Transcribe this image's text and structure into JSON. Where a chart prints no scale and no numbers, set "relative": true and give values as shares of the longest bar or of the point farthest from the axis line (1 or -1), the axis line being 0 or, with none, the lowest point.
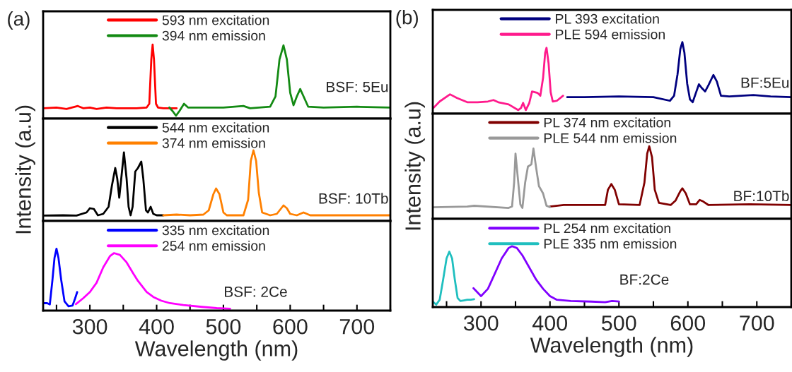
{
  "chart_data": [
    {
      "type": "line",
      "relative": true,
      "xlim": [
        230,
        750
      ],
      "tick_labels": false,
      "legend": "top",
      "marker": "none",
      "line_style": "solid",
      "grid": false,
      "annotations": [
        "(a)",
        "BSF: 5Eu"
      ],
      "series": [
        {
          "name": "593 nm excitation",
          "color": "#ff0000",
          "x": [
            230,
            250,
            265,
            282,
            290,
            300,
            310,
            325,
            340,
            370,
            385,
            389,
            392,
            394,
            396,
            399,
            402,
            410,
            430
          ],
          "values": [
            0.14,
            0.15,
            0.13,
            0.17,
            0.14,
            0.15,
            0.13,
            0.15,
            0.14,
            0.14,
            0.15,
            0.2,
            0.8,
            1.0,
            0.8,
            0.2,
            0.15,
            0.14,
            0.14
          ]
        },
        {
          "name": "394 nm emission",
          "color": "#138a13",
          "x": [
            419,
            424,
            429,
            434,
            441,
            447,
            460,
            500,
            530,
            540,
            570,
            578,
            584,
            590,
            595,
            600,
            605,
            610,
            615,
            620,
            627,
            650,
            700,
            750
          ],
          "values": [
            0.15,
            0.1,
            0.04,
            0.1,
            0.2,
            0.15,
            0.15,
            0.15,
            0.17,
            0.14,
            0.16,
            0.3,
            0.8,
            0.99,
            0.8,
            0.35,
            0.18,
            0.3,
            0.4,
            0.3,
            0.16,
            0.15,
            0.16,
            0.15
          ]
        }
      ]
    },
    {
      "type": "line",
      "relative": true,
      "xlim": [
        230,
        750
      ],
      "tick_labels": false,
      "legend": "top",
      "marker": "none",
      "line_style": "solid",
      "grid": false,
      "ylabel": "Intensity (a.u)",
      "annotations": [
        "BSF: 10Tb"
      ],
      "series": [
        {
          "name": "544 nm excitation",
          "color": "#000000",
          "x": [
            230,
            260,
            280,
            295,
            300,
            306,
            312,
            320,
            328,
            333,
            338,
            341,
            344,
            347,
            351,
            355,
            358,
            361,
            364,
            368,
            372,
            377,
            380,
            384,
            387,
            391,
            395,
            400,
            410
          ],
          "values": [
            0.077,
            0.08,
            0.077,
            0.12,
            0.18,
            0.17,
            0.08,
            0.1,
            0.2,
            0.5,
            0.75,
            0.6,
            0.33,
            0.6,
            0.97,
            0.6,
            0.2,
            0.08,
            0.2,
            0.7,
            0.75,
            0.84,
            0.6,
            0.15,
            0.12,
            0.2,
            0.1,
            0.08,
            0.08
          ]
        },
        {
          "name": "374 nm emission",
          "color": "#ff8000",
          "x": [
            410,
            430,
            450,
            470,
            478,
            485,
            489,
            494,
            500,
            505,
            530,
            537,
            541,
            545,
            549,
            553,
            558,
            570,
            580,
            585,
            590,
            595,
            600,
            610,
            620,
            630,
            680,
            750
          ],
          "values": [
            0.08,
            0.09,
            0.08,
            0.09,
            0.15,
            0.38,
            0.46,
            0.38,
            0.12,
            0.08,
            0.08,
            0.3,
            0.85,
            1.0,
            0.85,
            0.4,
            0.12,
            0.08,
            0.1,
            0.16,
            0.22,
            0.18,
            0.1,
            0.08,
            0.12,
            0.08,
            0.08,
            0.08
          ]
        }
      ]
    },
    {
      "type": "line",
      "relative": true,
      "xlim": [
        230,
        750
      ],
      "tick_labels": "x",
      "legend": "top",
      "marker": "none",
      "line_style": "solid",
      "grid": false,
      "xlabel": "Wavelength (nm)",
      "annotations": [
        "BSF: 2Ce"
      ],
      "xticks": [
        {
          "value": 250,
          "label": null
        },
        300,
        {
          "value": 350,
          "label": null
        },
        400,
        {
          "value": 450,
          "label": null
        },
        500,
        {
          "value": 550,
          "label": null
        },
        600,
        {
          "value": 650,
          "label": null
        },
        700,
        {
          "value": 750,
          "label": null
        }
      ],
      "series": [
        {
          "name": "335 nm excitation",
          "color": "#0000ff",
          "x": [
            230,
            236,
            240,
            244,
            247,
            250,
            253,
            257,
            262,
            268,
            274,
            278,
            281
          ],
          "values": [
            0.12,
            0.12,
            0.1,
            0.5,
            0.85,
            1.0,
            0.85,
            0.5,
            0.15,
            0.07,
            0.08,
            0.2,
            0.3
          ]
        },
        {
          "name": "254 nm emission",
          "color": "#ff00ff",
          "x": [
            279,
            290,
            300,
            310,
            320,
            330,
            336,
            345,
            355,
            365,
            372,
            385,
            395,
            407,
            420,
            440,
            468,
            490,
            510
          ],
          "values": [
            0.105,
            0.2,
            0.3,
            0.45,
            0.7,
            0.88,
            0.93,
            0.9,
            0.78,
            0.6,
            0.48,
            0.3,
            0.22,
            0.16,
            0.12,
            0.09,
            0.06,
            0.04,
            0.03
          ]
        }
      ]
    },
    {
      "type": "line",
      "relative": true,
      "xlim": [
        230,
        750
      ],
      "tick_labels": false,
      "legend": "top",
      "marker": "none",
      "line_style": "solid",
      "grid": false,
      "annotations": [
        "(b)",
        "BF:5Eu"
      ],
      "series": [
        {
          "name": "PL 393 excitation",
          "color": "#00007f",
          "x": [
            425,
            450,
            500,
            550,
            574,
            580,
            585,
            589,
            592,
            595,
            599,
            603,
            607,
            612,
            616,
            620,
            625,
            630,
            637,
            642,
            648,
            660,
            695,
            720,
            750
          ],
          "values": [
            0.23,
            0.23,
            0.24,
            0.23,
            0.18,
            0.25,
            0.55,
            0.9,
            1.0,
            0.85,
            0.42,
            0.2,
            0.16,
            0.3,
            0.41,
            0.36,
            0.31,
            0.4,
            0.54,
            0.45,
            0.25,
            0.24,
            0.26,
            0.24,
            0.23
          ]
        },
        {
          "name": "PLE 594 emission",
          "color": "#ff1a8c",
          "x": [
            231,
            240,
            255,
            265,
            280,
            295,
            310,
            318,
            325,
            340,
            354,
            358,
            361,
            365,
            370,
            374,
            382,
            386,
            390,
            393,
            395,
            398,
            401,
            404,
            410,
            419
          ],
          "values": [
            0.08,
            0.17,
            0.27,
            0.22,
            0.16,
            0.16,
            0.17,
            0.19,
            0.16,
            0.13,
            0.05,
            0.08,
            0.15,
            0.05,
            0.15,
            0.31,
            0.29,
            0.25,
            0.5,
            0.85,
            0.92,
            0.7,
            0.3,
            0.17,
            0.18,
            0.25
          ]
        }
      ]
    },
    {
      "type": "line",
      "relative": true,
      "xlim": [
        230,
        750
      ],
      "tick_labels": false,
      "legend": "top",
      "marker": "none",
      "line_style": "solid",
      "grid": false,
      "ylabel": "Intensity (a.u)",
      "annotations": [
        "BF:10Tb"
      ],
      "series": [
        {
          "name": "PL 374 nm excitation",
          "color": "#800000",
          "x": [
            400,
            420,
            480,
            484,
            489,
            494,
            500,
            530,
            537,
            541,
            544,
            548,
            552,
            558,
            575,
            582,
            589,
            592,
            597,
            603,
            612,
            617,
            622,
            630,
            690,
            750
          ],
          "values": [
            0.17,
            0.19,
            0.19,
            0.4,
            0.48,
            0.4,
            0.2,
            0.19,
            0.5,
            0.9,
            1.0,
            0.85,
            0.4,
            0.22,
            0.19,
            0.25,
            0.38,
            0.42,
            0.35,
            0.2,
            0.2,
            0.26,
            0.24,
            0.19,
            0.2,
            0.19
          ]
        },
        {
          "name": "PLE 544 nm emission",
          "color": "#999999",
          "x": [
            230,
            280,
            290,
            340,
            345,
            348,
            350,
            353,
            357,
            360,
            364,
            368,
            373,
            376,
            380,
            384,
            390,
            395,
            400
          ],
          "values": [
            0.16,
            0.17,
            0.18,
            0.15,
            0.17,
            0.5,
            0.9,
            0.6,
            0.2,
            0.15,
            0.5,
            0.72,
            0.75,
            0.97,
            0.7,
            0.45,
            0.35,
            0.18,
            0.16
          ]
        }
      ]
    },
    {
      "type": "line",
      "relative": true,
      "xlim": [
        230,
        750
      ],
      "tick_labels": "x",
      "legend": "top",
      "marker": "none",
      "line_style": "solid",
      "grid": false,
      "xlabel": "Wavelength (nm)",
      "annotations": [
        "BF:2Ce"
      ],
      "xticks": [
        {
          "value": 250,
          "label": null
        },
        300,
        {
          "value": 350,
          "label": null
        },
        400,
        {
          "value": 450,
          "label": null
        },
        500,
        {
          "value": 550,
          "label": null
        },
        600,
        {
          "value": 650,
          "label": null
        },
        700,
        {
          "value": 750,
          "label": null
        }
      ],
      "series": [
        {
          "name": "PL 254 nm excitation",
          "color": "#8000ff",
          "x": [
            289,
            300,
            310,
            320,
            330,
            340,
            345,
            352,
            360,
            370,
            380,
            390,
            400,
            410,
            430,
            460,
            480,
            490,
            500
          ],
          "values": [
            0.31,
            0.18,
            0.3,
            0.55,
            0.8,
            0.97,
            1.0,
            0.97,
            0.85,
            0.65,
            0.45,
            0.3,
            0.18,
            0.12,
            0.1,
            0.09,
            0.08,
            0.1,
            0.09
          ]
        },
        {
          "name": "PLE 335 nm emission",
          "color": "#1fbfbf",
          "x": [
            230,
            235,
            240,
            245,
            250,
            254,
            258,
            262,
            266,
            270,
            275,
            280,
            285,
            290
          ],
          "values": [
            0.09,
            0.04,
            0.12,
            0.45,
            0.8,
            0.91,
            0.8,
            0.45,
            0.15,
            0.1,
            0.11,
            0.12,
            0.12,
            0.13
          ]
        }
      ]
    }
  ]
}
